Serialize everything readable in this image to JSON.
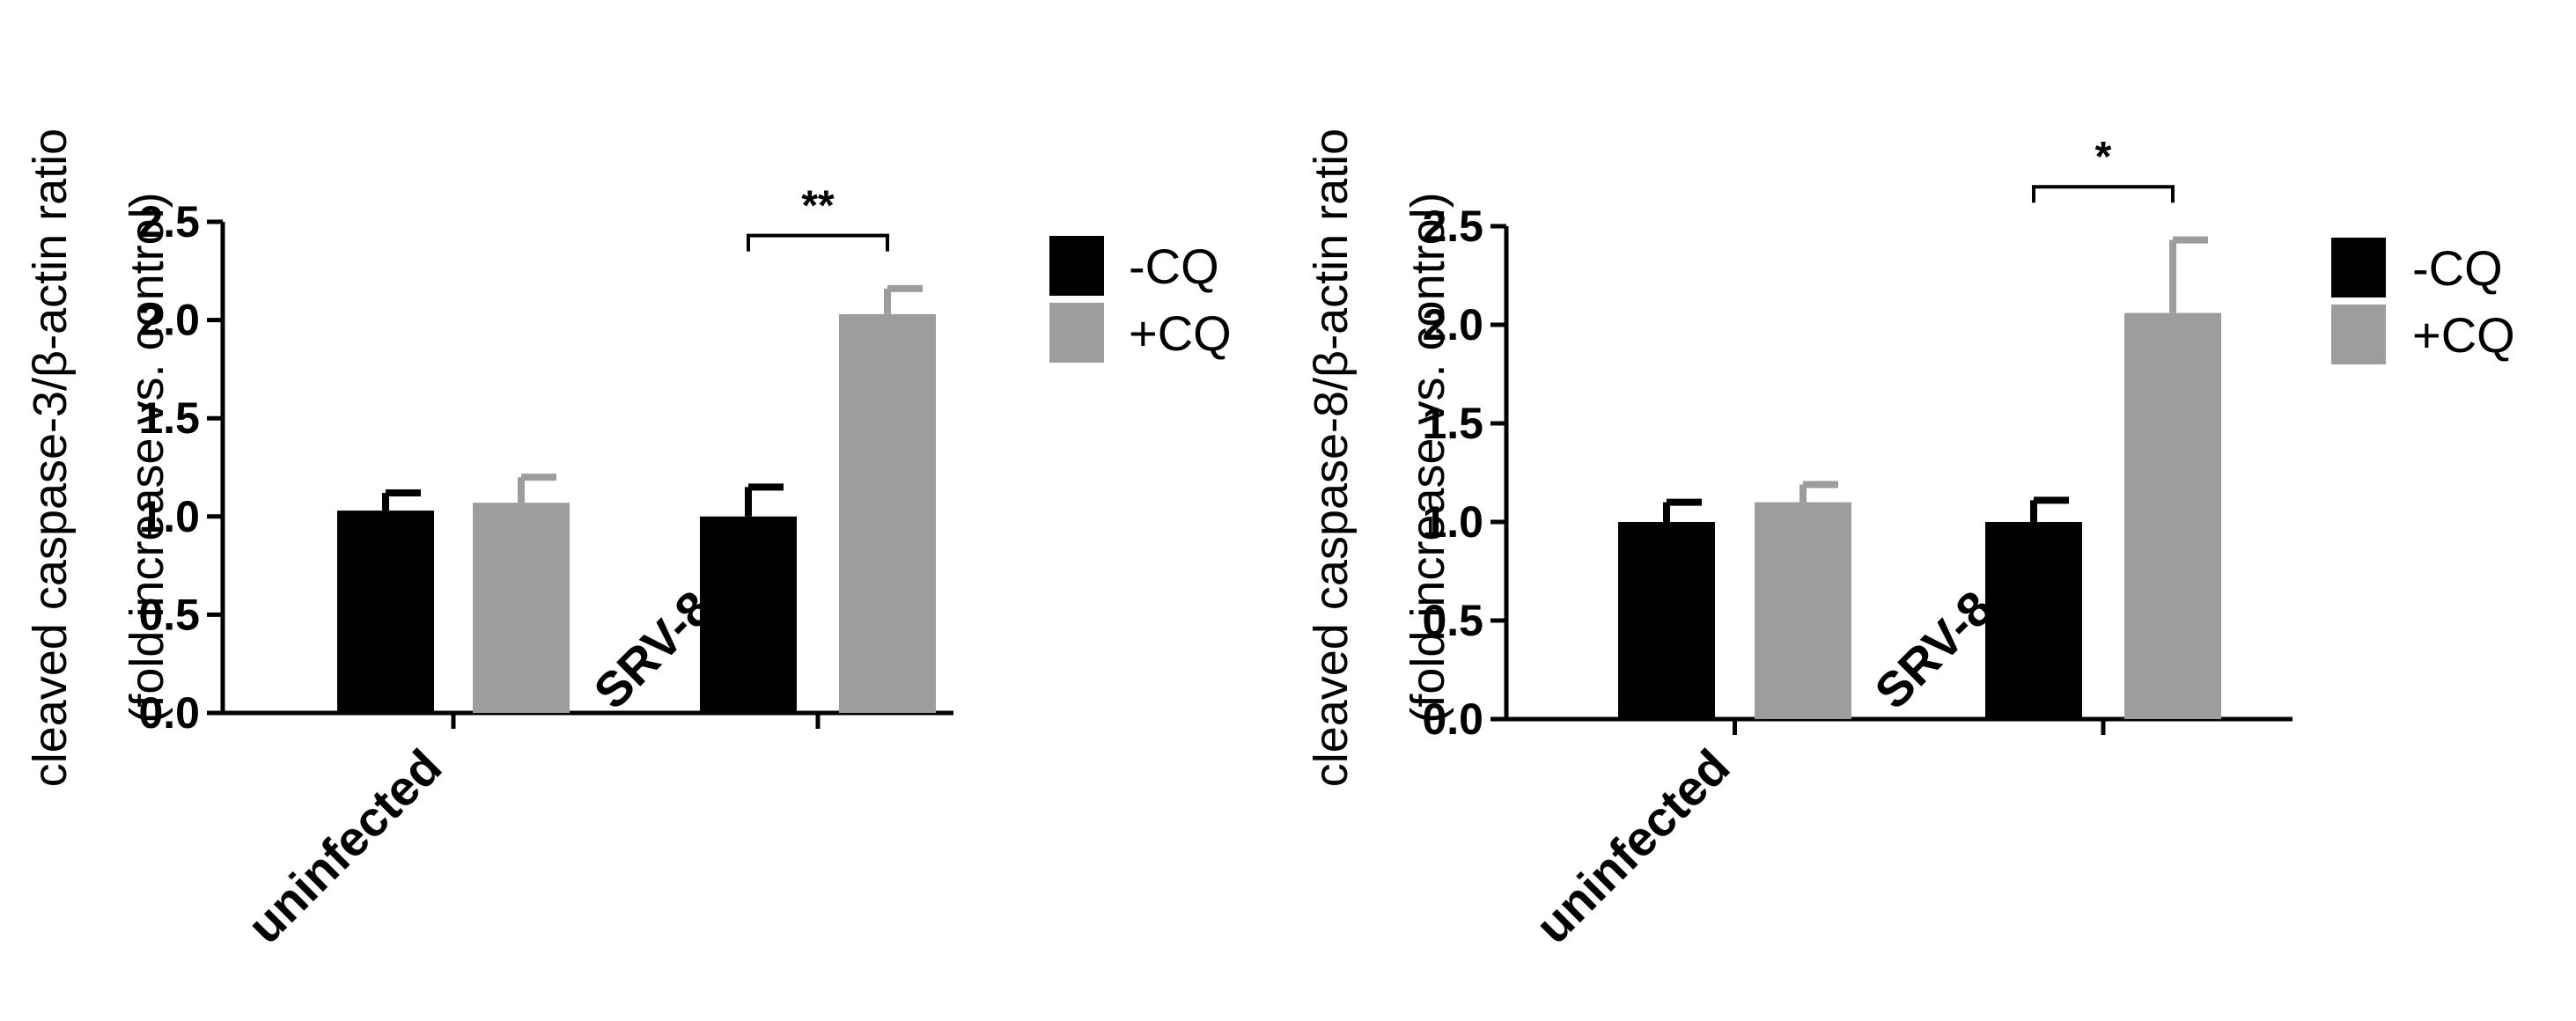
{
  "colors": {
    "neg_cq": "#000000",
    "pos_cq": "#9d9d9f",
    "axis": "#000000"
  },
  "chart_data": [
    {
      "type": "bar",
      "ylabel_lines": [
        "cleaved caspase-3/β-actin ratio",
        "(fold increase vs. control)"
      ],
      "ylim": [
        0,
        2.5
      ],
      "yticks": [
        "0.0",
        "0.5",
        "1.0",
        "1.5",
        "2.0",
        "2.5"
      ],
      "categories": [
        "uninfected",
        "SRV-8"
      ],
      "legend_position": "right",
      "series": [
        {
          "name": "-CQ",
          "values": [
            1.03,
            1.0
          ],
          "errors": [
            0.09,
            0.15
          ]
        },
        {
          "name": "+CQ",
          "values": [
            1.07,
            2.03
          ],
          "errors": [
            0.13,
            0.13
          ]
        }
      ],
      "significance": [
        {
          "category": "SRV-8",
          "label": "**",
          "y": 2.43
        }
      ]
    },
    {
      "type": "bar",
      "ylabel_lines": [
        "cleaved caspase-8/β-actin ratio",
        "(fold increase vs. control)"
      ],
      "ylim": [
        0,
        2.5
      ],
      "yticks": [
        "0.0",
        "0.5",
        "1.0",
        "1.5",
        "2.0",
        "2.5"
      ],
      "categories": [
        "uninfected",
        "SRV-8"
      ],
      "legend_position": "right",
      "series": [
        {
          "name": "-CQ",
          "values": [
            1.0,
            1.0
          ],
          "errors": [
            0.1,
            0.11
          ]
        },
        {
          "name": "+CQ",
          "values": [
            1.1,
            2.06
          ],
          "errors": [
            0.09,
            0.37
          ]
        }
      ],
      "significance": [
        {
          "category": "SRV-8",
          "label": "*",
          "y": 2.7
        }
      ]
    }
  ]
}
